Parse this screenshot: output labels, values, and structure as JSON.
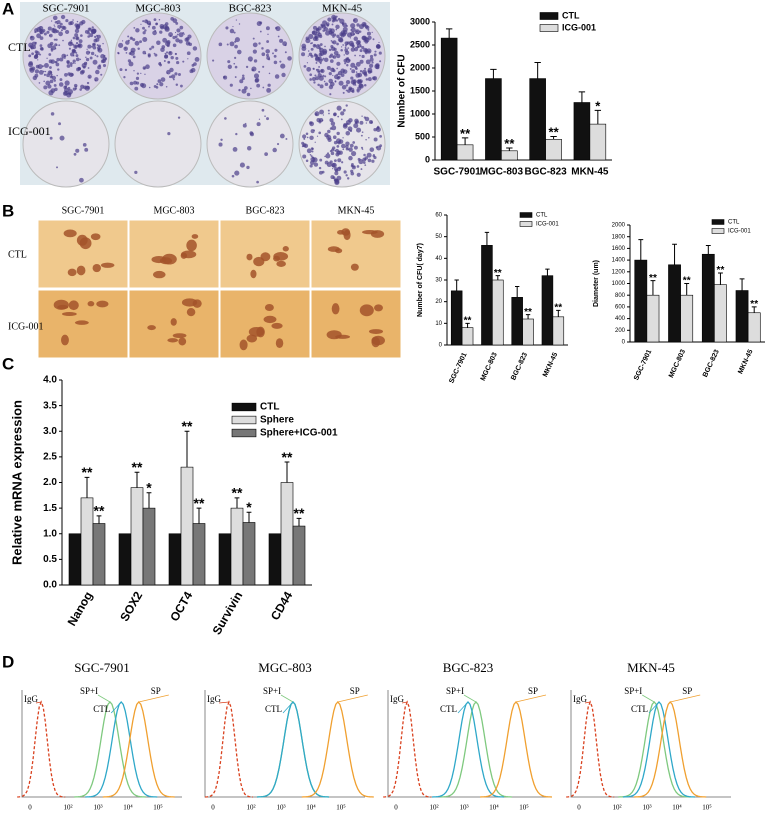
{
  "panel_labels": [
    "A",
    "B",
    "C",
    "D"
  ],
  "panel_a_images": {
    "columns": [
      "SGC-7901",
      "MGC-803",
      "BGC-823",
      "MKN-45"
    ],
    "rows": [
      "CTL",
      "ICG-001"
    ]
  },
  "panel_b_images": {
    "columns": [
      "SGC-7901",
      "MGC-803",
      "BGC-823",
      "MKN-45"
    ],
    "rows": [
      "CTL",
      "ICG-001"
    ]
  },
  "panel_d": {
    "titles": [
      "SGC-7901",
      "MGC-803",
      "BGC-823",
      "MKN-45"
    ],
    "x_tick_labels": [
      "0",
      "10²",
      "10³",
      "10⁴",
      "10⁵"
    ],
    "curve_labels": [
      "IgG",
      "SP+I",
      "CTL",
      "SP"
    ]
  },
  "chart_data": [
    {
      "type": "bar",
      "y_label": "Number of CFU",
      "categories": [
        "SGC-7901",
        "MGC-803",
        "BGC-823",
        "MKN-45"
      ],
      "series": [
        {
          "name": "CTL",
          "color": "#111111",
          "values": [
            2650,
            1770,
            1770,
            1250
          ],
          "errors": [
            200,
            200,
            350,
            230
          ]
        },
        {
          "name": "ICG-001",
          "color": "#dddddd",
          "values": [
            330,
            200,
            450,
            780
          ],
          "errors": [
            150,
            60,
            60,
            300
          ],
          "significance": [
            "**",
            "**",
            "**",
            "*"
          ]
        }
      ],
      "ylim": [
        0,
        3000
      ],
      "yticks": [
        0,
        500,
        1000,
        1500,
        2000,
        2500,
        3000
      ],
      "legend": "top-right"
    },
    {
      "type": "bar",
      "y_label": "Number of CFU( day7)",
      "categories": [
        "SGC-7901",
        "MGC-803",
        "BGC-823",
        "MKN-45"
      ],
      "series": [
        {
          "name": "CTL",
          "color": "#111111",
          "values": [
            25,
            46,
            22,
            32
          ],
          "errors": [
            5,
            6,
            5,
            3
          ]
        },
        {
          "name": "ICG-001",
          "color": "#dddddd",
          "values": [
            8,
            30,
            12,
            13
          ],
          "errors": [
            2,
            2,
            2,
            3
          ],
          "significance": [
            "**",
            "**",
            "**",
            "**"
          ]
        }
      ],
      "ylim": [
        0,
        60
      ],
      "yticks": [
        0,
        10,
        20,
        30,
        40,
        50,
        60
      ],
      "legend": "top-right"
    },
    {
      "type": "bar",
      "y_label": "Diameter (um)",
      "categories": [
        "SGC-7901",
        "MGC-803",
        "BGC-823",
        "MKN-45"
      ],
      "series": [
        {
          "name": "CTL",
          "color": "#111111",
          "values": [
            1400,
            1320,
            1500,
            880
          ],
          "errors": [
            350,
            350,
            150,
            200
          ]
        },
        {
          "name": "ICG-001",
          "color": "#dddddd",
          "values": [
            800,
            800,
            980,
            500
          ],
          "errors": [
            250,
            200,
            200,
            100
          ],
          "significance": [
            "**",
            "**",
            "**",
            "**"
          ]
        }
      ],
      "ylim": [
        0,
        2000
      ],
      "yticks": [
        0,
        200,
        400,
        600,
        800,
        1000,
        1200,
        1400,
        1600,
        1800,
        2000
      ],
      "legend": "top-right"
    },
    {
      "type": "bar",
      "y_label": "Relative mRNA expression",
      "categories": [
        "Nanog",
        "SOX2",
        "OCT4",
        "Survivin",
        "CD44"
      ],
      "series": [
        {
          "name": "CTL",
          "color": "#111111",
          "values": [
            1,
            1,
            1,
            1,
            1
          ]
        },
        {
          "name": "Sphere",
          "color": "#dddddd",
          "values": [
            1.7,
            1.9,
            2.3,
            1.5,
            2.0
          ],
          "errors": [
            0.4,
            0.3,
            0.7,
            0.2,
            0.4
          ],
          "significance": [
            "**",
            "**",
            "**",
            "**",
            "**"
          ]
        },
        {
          "name": "Sphere+ICG-001",
          "color": "#777777",
          "values": [
            1.2,
            1.5,
            1.2,
            1.22,
            1.15
          ],
          "errors": [
            0.15,
            0.3,
            0.3,
            0.2,
            0.15
          ],
          "significance": [
            "**",
            "*",
            "**",
            "*",
            "**"
          ]
        }
      ],
      "ylim": [
        0,
        4
      ],
      "yticks": [
        {
          "value": 0,
          "label": "0.0"
        },
        0.5,
        {
          "value": 1,
          "label": "1.0"
        },
        1.5,
        {
          "value": 2,
          "label": "2.0"
        },
        2.5,
        {
          "value": 3,
          "label": "3.0"
        },
        3.5,
        {
          "value": 4,
          "label": "4.0"
        }
      ],
      "legend": "top-right"
    }
  ]
}
